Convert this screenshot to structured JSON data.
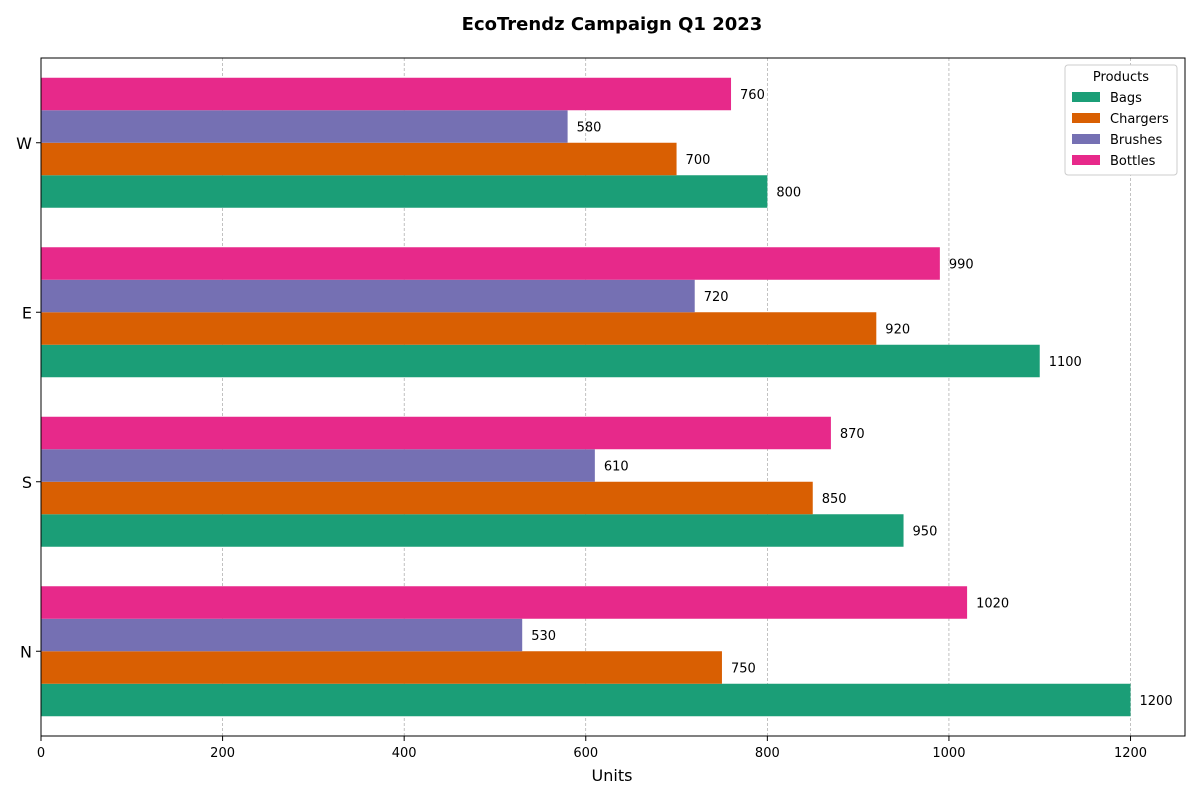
{
  "chart_data": {
    "type": "bar",
    "orientation": "horizontal",
    "title": "EcoTrendz Campaign Q1 2023",
    "xlabel": "Units",
    "ylabel": "",
    "categories": [
      "N",
      "S",
      "E",
      "W"
    ],
    "series": [
      {
        "name": "Bags",
        "color": "#1b9e77",
        "values": [
          1200,
          950,
          1100,
          800
        ]
      },
      {
        "name": "Chargers",
        "color": "#d95f02",
        "values": [
          750,
          850,
          920,
          700
        ]
      },
      {
        "name": "Brushes",
        "color": "#7570b3",
        "values": [
          530,
          610,
          720,
          580
        ]
      },
      {
        "name": "Bottles",
        "color": "#e7298a",
        "values": [
          1020,
          870,
          990,
          760
        ]
      }
    ],
    "xlim": [
      0,
      1260
    ],
    "xticks": [
      0,
      200,
      400,
      600,
      800,
      1000,
      1200
    ],
    "grid": "vertical dashed",
    "legend": {
      "title": "Products",
      "placement": "top-right"
    }
  }
}
